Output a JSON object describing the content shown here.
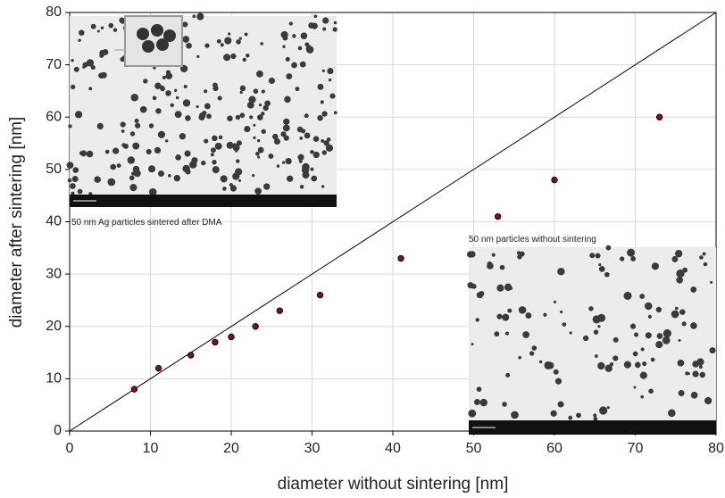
{
  "chart_data": {
    "type": "scatter",
    "x_label": "diameter without sintering [nm]",
    "y_label": "diameter after sintering [nm]",
    "x": [
      8,
      11,
      15,
      18,
      20,
      23,
      26,
      31,
      41,
      53,
      60,
      73
    ],
    "values": [
      8,
      12,
      14.5,
      17,
      18,
      20,
      23,
      26,
      33,
      41,
      48,
      60
    ],
    "color": "#7a1414",
    "xlim": [
      0,
      80
    ],
    "ylim": [
      0,
      80
    ],
    "xticks": [
      0,
      10,
      20,
      30,
      40,
      50,
      60,
      70,
      80
    ],
    "yticks": [
      0,
      10,
      20,
      30,
      40,
      50,
      60,
      70,
      80
    ],
    "grid": true,
    "identity_line": true,
    "annotations": [
      "50 nm Ag particles sintered after DMA",
      "50 nm particles without sintering"
    ]
  }
}
